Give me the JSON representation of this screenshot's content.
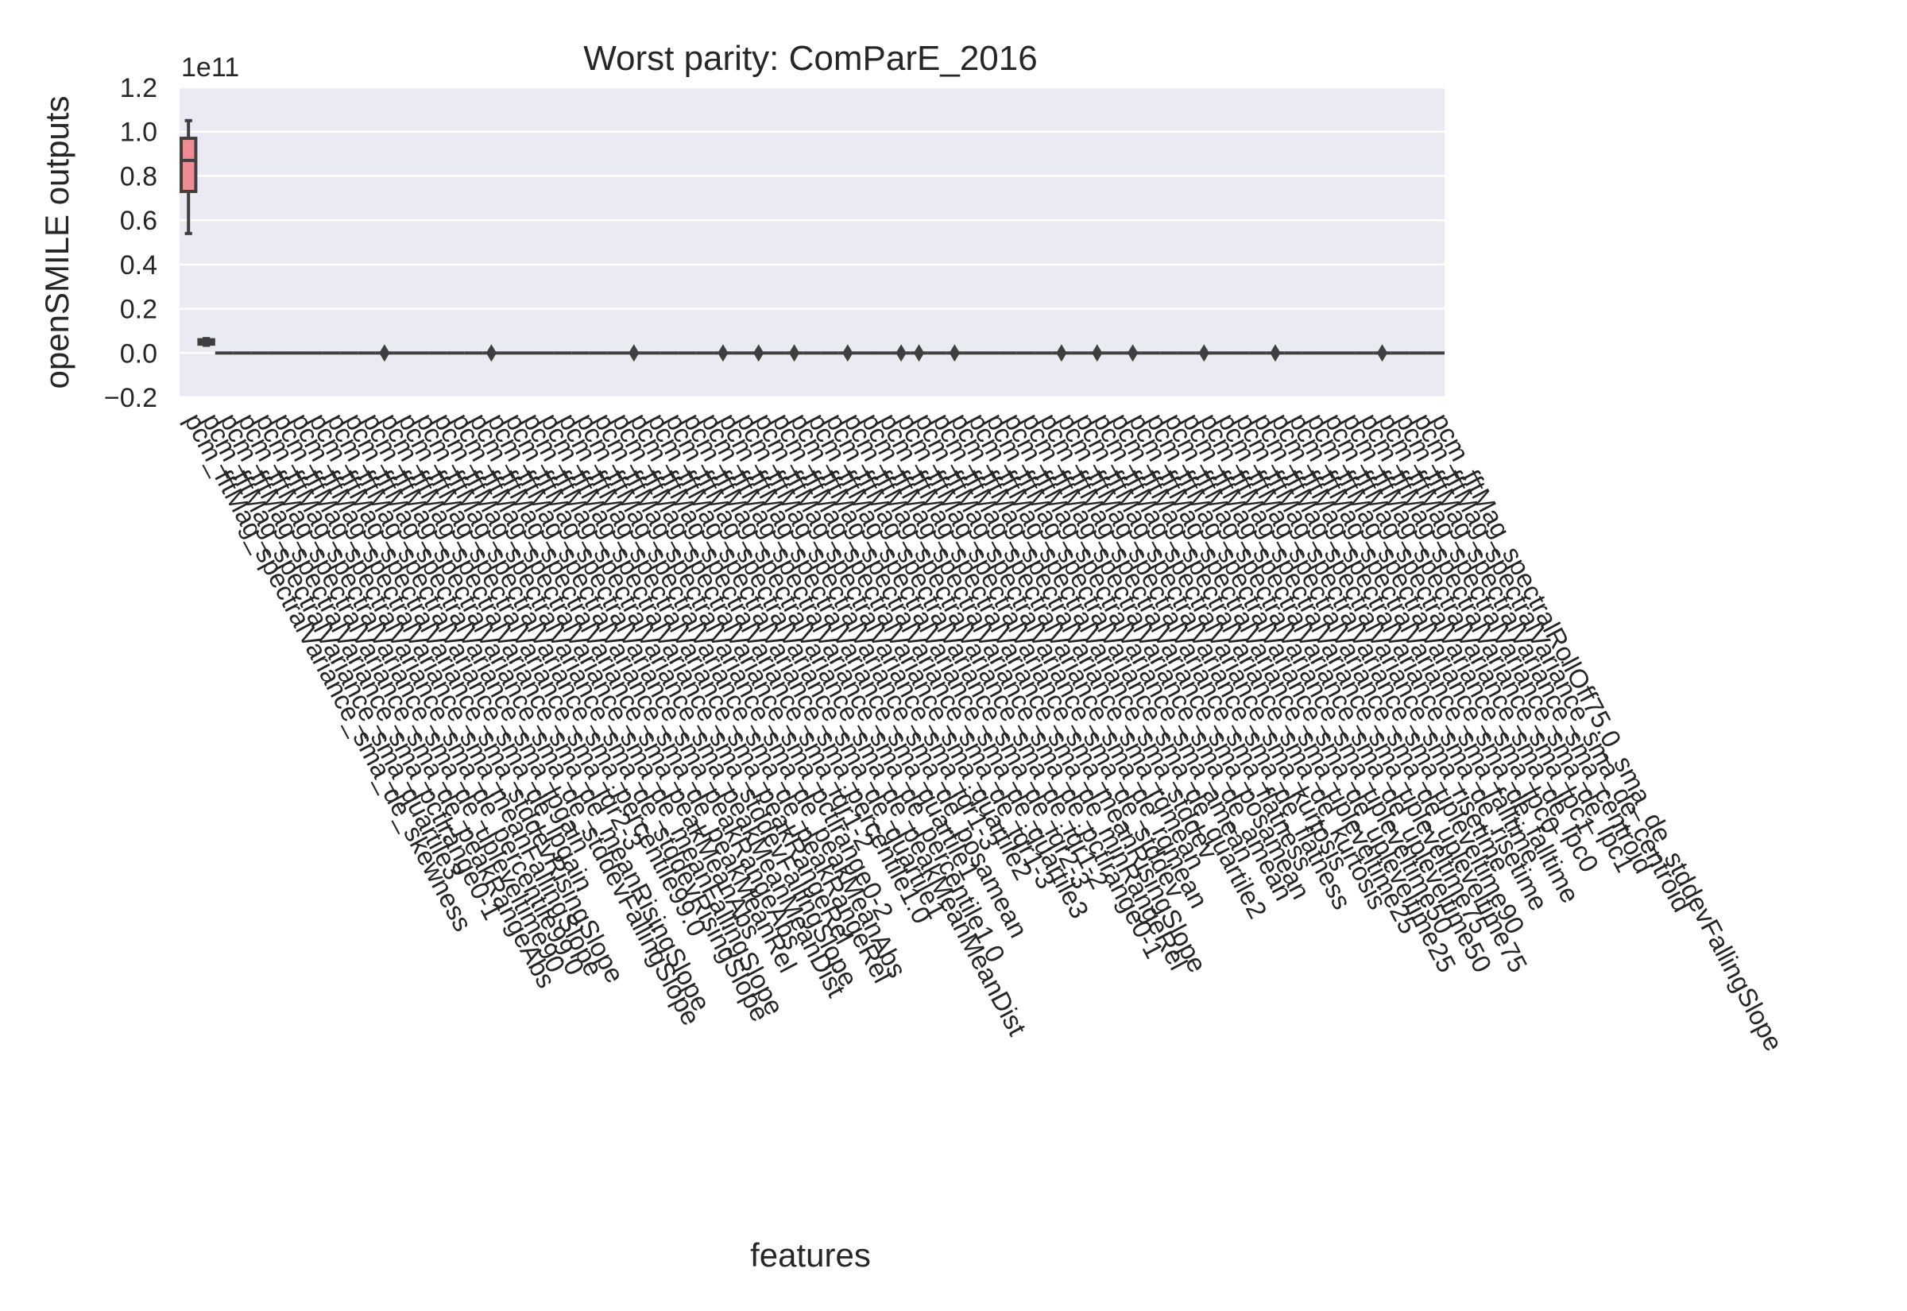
{
  "chart_data": {
    "type": "box",
    "title": "Worst parity: ComParE_2016",
    "xlabel": "features",
    "ylabel": "openSMILE outputs",
    "y_offset_label": "1e11",
    "y_scale": 100000000000,
    "ylim": [
      -0.2,
      1.2
    ],
    "yticks": [
      -0.2,
      0.0,
      0.2,
      0.4,
      0.6,
      0.8,
      1.0,
      1.2
    ],
    "ytick_labels": [
      "−0.2",
      "0.0",
      "0.2",
      "0.4",
      "0.6",
      "0.8",
      "1.0",
      "1.2"
    ],
    "grid": true,
    "legend": "none",
    "colors": {
      "background": "#eaeaf2",
      "grid": "#ffffff",
      "box_first": "#f08b96",
      "box_second": "#e9a870",
      "line": "#3f3f3f"
    },
    "categories": [
      "pcm_fftMag_spectralVariance_sma_de_skewness",
      "pcm_fftMag_spectralVariance_sma_quartile3",
      "pcm_fftMag_spectralVariance_sma_pctlrange0-1",
      "pcm_fftMag_spectralVariance_sma_de_peakRangeAbs",
      "pcm_fftMag_spectralVariance_sma_de_upleveltime90",
      "pcm_fftMag_spectralVariance_sma_de_percentile99.0",
      "pcm_fftMag_spectralVariance_sma_meanFallingSlope",
      "pcm_fftMag_spectralVariance_sma_stddevRisingSlope",
      "pcm_fftMag_spectralVariance_sma_de_lpgain",
      "pcm_fftMag_spectralVariance_sma_lpgain",
      "pcm_fftMag_spectralVariance_sma_de_stddevFallingSlope",
      "pcm_fftMag_spectralVariance_sma_de_meanRisingSlope",
      "pcm_fftMag_spectralVariance_sma_iqr2-3",
      "pcm_fftMag_spectralVariance_sma_percentile99.0",
      "pcm_fftMag_spectralVariance_sma_de_stddevRisingSlope",
      "pcm_fftMag_spectralVariance_sma_de_meanFallingSlope",
      "pcm_fftMag_spectralVariance_sma_peakMeanAbs",
      "pcm_fftMag_spectralVariance_sma_de_peakMeanRel",
      "pcm_fftMag_spectralVariance_sma_peakRangeAbs",
      "pcm_fftMag_spectralVariance_sma_peakMeanMeanDist",
      "pcm_fftMag_spectralVariance_sma_stddevFallingSlope",
      "pcm_fftMag_spectralVariance_sma_peakRangeRel",
      "pcm_fftMag_spectralVariance_sma_de_peakRangeRel",
      "pcm_fftMag_spectralVariance_sma_de_peakMeanAbs",
      "pcm_fftMag_spectralVariance_sma_pctlrange0-2",
      "pcm_fftMag_spectralVariance_sma_iqr1-2",
      "pcm_fftMag_spectralVariance_sma_percentile1.0",
      "pcm_fftMag_spectralVariance_sma_de_quartile1",
      "pcm_fftMag_spectralVariance_sma_de_peakMeanMeanDist",
      "pcm_fftMag_spectralVariance_sma_de_percentile1.0",
      "pcm_fftMag_spectralVariance_sma_quartile1",
      "pcm_fftMag_spectralVariance_sma_de_posamean",
      "pcm_fftMag_spectralVariance_sma_iqr1-3",
      "pcm_fftMag_spectralVariance_sma_quartile2",
      "pcm_fftMag_spectralVariance_sma_de_iqr1-3",
      "pcm_fftMag_spectralVariance_sma_de_quartile3",
      "pcm_fftMag_spectralVariance_sma_de_iqr2-3",
      "pcm_fftMag_spectralVariance_sma_de_iqr1-2",
      "pcm_fftMag_spectralVariance_sma_de_pctlrange0-1",
      "pcm_fftMag_spectralVariance_sma_de_minRangeRel",
      "pcm_fftMag_spectralVariance_sma_meanRisingSlope",
      "pcm_fftMag_spectralVariance_sma_de_stddev",
      "pcm_fftMag_spectralVariance_sma_de_rqmean",
      "pcm_fftMag_spectralVariance_sma_rqmean",
      "pcm_fftMag_spectralVariance_sma_stddev",
      "pcm_fftMag_spectralVariance_sma_de_quartile2",
      "pcm_fftMag_spectralVariance_sma_amean",
      "pcm_fftMag_spectralVariance_sma_de_amean",
      "pcm_fftMag_spectralVariance_sma_posamean",
      "pcm_fftMag_spectralVariance_sma_flatness",
      "pcm_fftMag_spectralVariance_sma_de_flatness",
      "pcm_fftMag_spectralVariance_sma_kurtosis",
      "pcm_fftMag_spectralVariance_sma_de_kurtosis",
      "pcm_fftMag_spectralVariance_sma_upleveltime25",
      "pcm_fftMag_spectralVariance_sma_de_upleveltime25",
      "pcm_fftMag_spectralVariance_sma_upleveltime50",
      "pcm_fftMag_spectralVariance_sma_de_upleveltime50",
      "pcm_fftMag_spectralVariance_sma_upleveltime75",
      "pcm_fftMag_spectralVariance_sma_de_upleveltime75",
      "pcm_fftMag_spectralVariance_sma_upleveltime90",
      "pcm_fftMag_spectralVariance_sma_risetime",
      "pcm_fftMag_spectralVariance_sma_de_risetime",
      "pcm_fftMag_spectralVariance_sma_falltime",
      "pcm_fftMag_spectralVariance_sma_de_falltime",
      "pcm_fftMag_spectralVariance_sma_lpc0",
      "pcm_fftMag_spectralVariance_sma_de_lpc0",
      "pcm_fftMag_spectralVariance_sma_lpc1",
      "pcm_fftMag_spectralVariance_sma_de_lpc1",
      "pcm_fftMag_spectralVariance_sma_centroid",
      "pcm_fftMag_spectralVariance_sma_de_centroid",
      "pcm_fftMag_spectralRollOff75.0_sma_de_stddevFallingSlope"
    ],
    "series": [
      {
        "boxes": [
          {
            "min": 0.54,
            "q1": 0.73,
            "median": 0.87,
            "q3": 0.97,
            "max": 1.05,
            "outliers": []
          },
          {
            "min": 0.035,
            "q1": 0.04,
            "median": 0.05,
            "q3": 0.06,
            "max": 0.065,
            "outliers": []
          },
          {
            "min": -0.002,
            "q1": -0.001,
            "median": 0.0,
            "q3": 0.001,
            "max": 0.002,
            "outliers": []
          }
        ],
        "flat_boxes_value": 0.0,
        "outlier_category_indices": [
          11,
          17,
          25,
          30,
          32,
          34,
          37,
          40,
          41,
          43,
          49,
          51,
          53,
          57,
          61,
          67
        ]
      }
    ]
  }
}
